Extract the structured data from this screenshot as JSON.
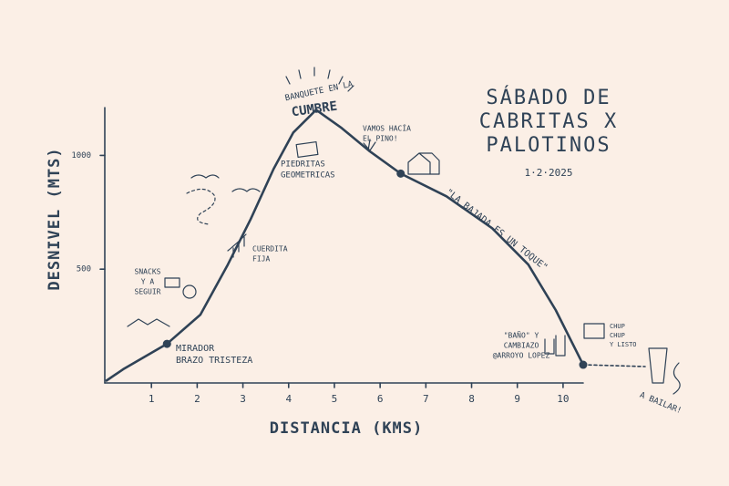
{
  "chart_data": {
    "type": "line",
    "title": [
      "SÁBADO DE",
      "CABRITAS X",
      "PALOTINOS"
    ],
    "subtitle": "1·2·2025",
    "x_label": "DISTANCIA (KMS)",
    "y_label": "DESNIVEL (MTS)",
    "x": [
      0,
      0.38,
      1.34,
      2.07,
      2.67,
      3.17,
      3.67,
      4.1,
      4.6,
      5.16,
      5.76,
      6.45,
      7.45,
      8.45,
      9.24,
      9.84,
      10.44
    ],
    "values": [
      8,
      60,
      172,
      300,
      520,
      720,
      940,
      1100,
      1200,
      1120,
      1020,
      920,
      820,
      680,
      520,
      320,
      80
    ],
    "color": "#2f4256",
    "xlim": [
      0,
      10.5
    ],
    "ylim": [
      0,
      1210
    ],
    "xticks": [
      1,
      2,
      3,
      4,
      5,
      6,
      7,
      8,
      9,
      10
    ],
    "yticks": [
      500,
      1000
    ],
    "grid": false,
    "annotations": [
      [
        "BANQUETE EN LA"
      ],
      [
        "CUMBRE"
      ],
      [
        "PIEDRITAS",
        "GEOMETRICAS"
      ],
      [
        "VAMOS HACÍA",
        "EL PINO!"
      ],
      [
        "CUERDITA",
        "FIJA"
      ],
      [
        "SNACKS",
        "Y A",
        "SEGUIR"
      ],
      [
        "MIRADOR",
        "BRAZO TRISTEZA"
      ],
      [
        "\"LA BAJADA ES UN TOQUE\""
      ],
      [
        "\"BAÑO\" Y",
        "CAMBIAZO",
        "@ARROYO LOPEZ"
      ],
      [
        "CHUP",
        "CHUP",
        "Y LISTO"
      ],
      [
        "A BAILAR!"
      ]
    ]
  }
}
